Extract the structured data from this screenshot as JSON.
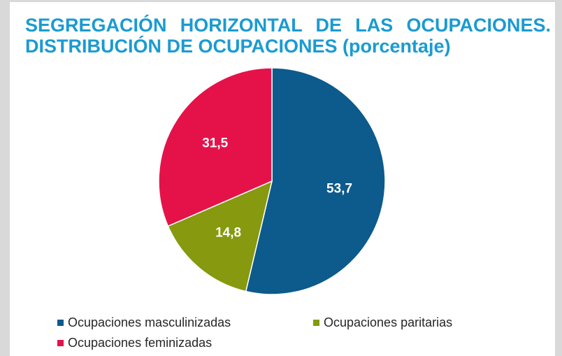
{
  "title": {
    "line1": "SEGREGACIÓN HORIZONTAL DE LAS OCUPACIONES.",
    "line2": "DISTRIBUCIÓN DE OCUPACIONES (porcentaje)"
  },
  "colors": {
    "title": "#1a9bd1",
    "label_text": "#ffffff",
    "legend_text": "#262626"
  },
  "chart_data": {
    "type": "pie",
    "title": "SEGREGACIÓN HORIZONTAL DE LAS OCUPACIONES. DISTRIBUCIÓN DE OCUPACIONES (porcentaje)",
    "legend_position": "bottom",
    "slices": [
      {
        "name": "Ocupaciones masculinizadas",
        "value": 53.7,
        "label": "53,7",
        "color": "#0d5a8c"
      },
      {
        "name": "Ocupaciones paritarias",
        "value": 14.8,
        "label": "14,8",
        "color": "#86990f"
      },
      {
        "name": "Ocupaciones feminizadas",
        "value": 31.5,
        "label": "31,5",
        "color": "#e5124a"
      }
    ]
  }
}
